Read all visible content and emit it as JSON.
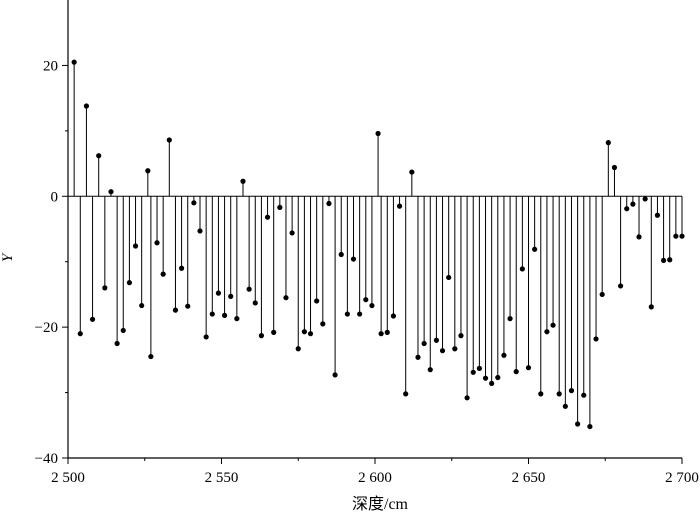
{
  "chart_data": {
    "type": "stem",
    "title": "",
    "xlabel": "深度/cm",
    "ylabel": "Y",
    "xlim": [
      2500,
      2700
    ],
    "ylim": [
      -40,
      30
    ],
    "xticks": [
      2500,
      2550,
      2600,
      2650,
      2700
    ],
    "xtick_labels": [
      "2 500",
      "2 550",
      "2 600",
      "2 650",
      "2 700"
    ],
    "yticks": [
      -40,
      -20,
      0,
      20
    ],
    "ytick_labels": [
      "−40",
      "−20",
      "0",
      "20"
    ],
    "baseline": 0,
    "grid": false,
    "marker": "filled-circle",
    "color": "#000000",
    "x": [
      2502,
      2504,
      2506,
      2508,
      2510,
      2512,
      2514,
      2516,
      2518,
      2520,
      2522,
      2524,
      2526,
      2527,
      2529,
      2531,
      2533,
      2535,
      2537,
      2539,
      2541,
      2543,
      2545,
      2547,
      2549,
      2551,
      2553,
      2555,
      2557,
      2559,
      2561,
      2563,
      2565,
      2567,
      2569,
      2571,
      2573,
      2575,
      2577,
      2579,
      2581,
      2583,
      2585,
      2587,
      2589,
      2591,
      2593,
      2595,
      2597,
      2599,
      2601,
      2602,
      2604,
      2606,
      2608,
      2610,
      2612,
      2614,
      2616,
      2618,
      2620,
      2622,
      2624,
      2626,
      2628,
      2630,
      2632,
      2634,
      2636,
      2638,
      2640,
      2642,
      2644,
      2646,
      2648,
      2650,
      2652,
      2654,
      2656,
      2658,
      2660,
      2662,
      2664,
      2666,
      2668,
      2670,
      2672,
      2674,
      2676,
      2678,
      2680,
      2682,
      2684,
      2686,
      2688,
      2690,
      2692,
      2694,
      2696,
      2698,
      2700
    ],
    "y": [
      20.5,
      -21,
      13.8,
      -18.8,
      6.2,
      -14,
      0.7,
      -22.5,
      -20.5,
      -13.2,
      -7.6,
      -16.7,
      3.9,
      -24.5,
      -7.1,
      -11.9,
      8.6,
      -17.4,
      -11,
      -16.8,
      -1,
      -5.3,
      -21.5,
      -18,
      -14.8,
      -18.2,
      -15.3,
      -18.7,
      2.3,
      -14.2,
      -16.3,
      -21.3,
      -3.2,
      -20.8,
      -1.7,
      -15.5,
      -5.6,
      -23.3,
      -20.7,
      -21,
      -16,
      -19.5,
      -1.1,
      -27.3,
      -8.9,
      -18,
      -9.6,
      -18,
      -15.8,
      -16.7,
      9.6,
      -21,
      -20.8,
      -18.3,
      -1.5,
      -30.2,
      3.7,
      -24.6,
      -22.5,
      -26.5,
      -22,
      -23.6,
      -12.4,
      -23.3,
      -21.3,
      -30.8,
      -26.9,
      -26.3,
      -27.8,
      -28.6,
      -27.7,
      -24.3,
      -18.7,
      -26.8,
      -11.1,
      -26.2,
      -8.1,
      -30.2,
      -20.7,
      -19.7,
      -30.2,
      -32.1,
      -29.7,
      -34.8,
      -30.4,
      -35.2,
      -21.8,
      -15,
      8.2,
      4.4,
      -13.7,
      -1.9,
      -1.2,
      -6.2,
      -0.4,
      -16.9,
      -2.9,
      -9.8,
      -9.7,
      -6.1,
      -6.1
    ]
  }
}
